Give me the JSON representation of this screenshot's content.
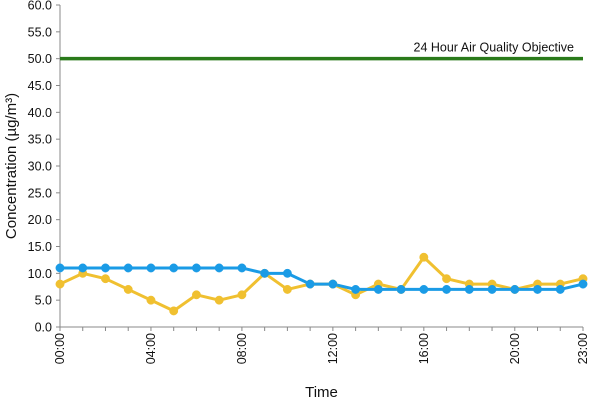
{
  "chart_data": {
    "type": "line",
    "xlabel": "Time",
    "ylabel": "Concentration (µg/m³)",
    "ylim": [
      0,
      60
    ],
    "yticks": [
      "0.0",
      "5.0",
      "10.0",
      "15.0",
      "20.0",
      "25.0",
      "30.0",
      "35.0",
      "40.0",
      "45.0",
      "50.0",
      "55.0",
      "60.0"
    ],
    "xlim": [
      0,
      23
    ],
    "xticks": [
      {
        "x": 0,
        "label": "00:00"
      },
      {
        "x": 4,
        "label": "04:00"
      },
      {
        "x": 8,
        "label": "08:00"
      },
      {
        "x": 12,
        "label": "12:00"
      },
      {
        "x": 16,
        "label": "16:00"
      },
      {
        "x": 20,
        "label": "20:00"
      },
      {
        "x": 23,
        "label": "23:00"
      }
    ],
    "x": [
      0,
      1,
      2,
      3,
      4,
      5,
      6,
      7,
      8,
      9,
      10,
      11,
      12,
      13,
      14,
      15,
      16,
      17,
      18,
      19,
      20,
      21,
      22,
      23
    ],
    "series": [
      {
        "color": "#f0c030",
        "values": [
          8,
          10,
          9,
          7,
          5,
          3,
          6,
          5,
          6,
          10,
          7,
          8,
          8,
          6,
          8,
          7,
          13,
          9,
          8,
          8,
          7,
          8,
          8,
          9
        ]
      },
      {
        "color": "#1a9be6",
        "values": [
          11,
          11,
          11,
          11,
          11,
          11,
          11,
          11,
          11,
          10,
          10,
          8,
          8,
          7,
          7,
          7,
          7,
          7,
          7,
          7,
          7,
          7,
          7,
          8
        ]
      }
    ],
    "reference_line": {
      "value": 50,
      "label": "24 Hour Air Quality Objective",
      "color": "#2a7a1a"
    },
    "grid": false,
    "legend": "none"
  }
}
